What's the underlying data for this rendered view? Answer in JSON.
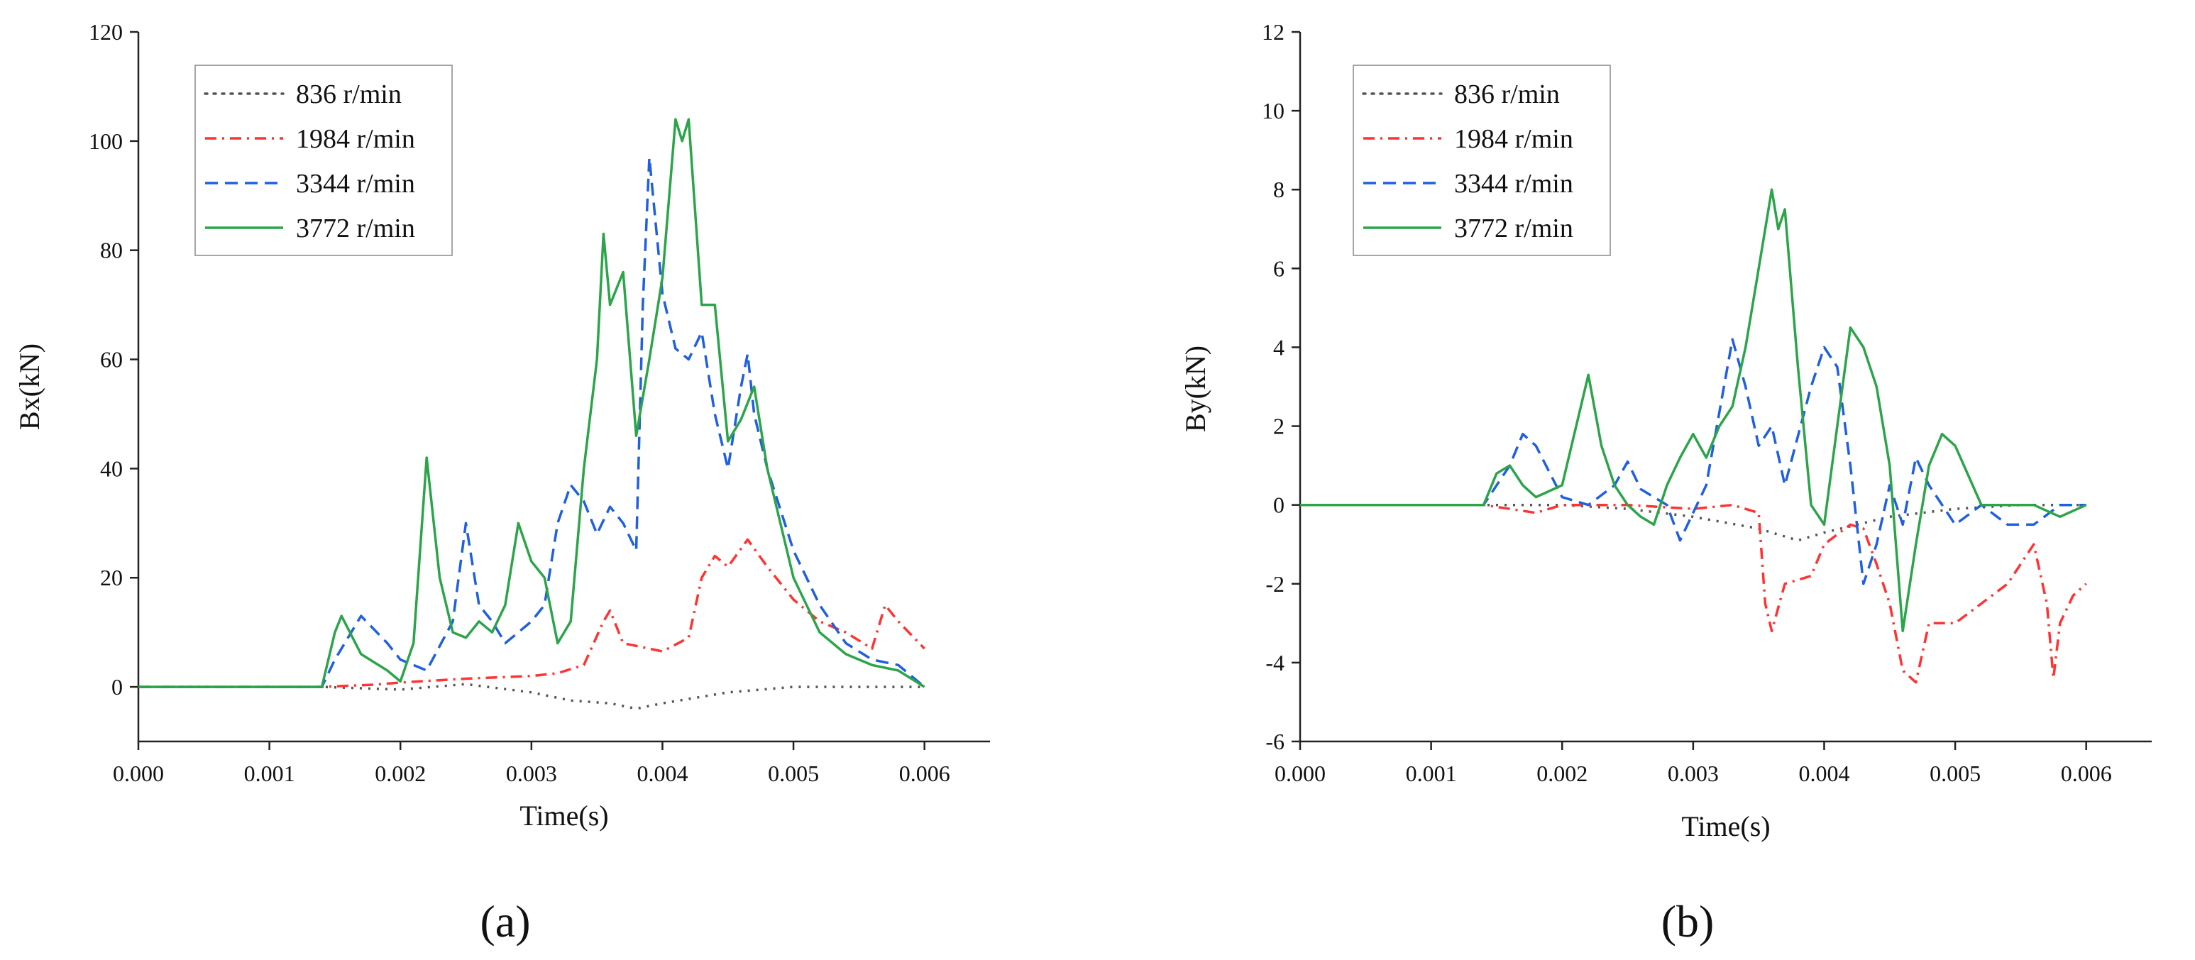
{
  "chart_data": [
    {
      "type": "line",
      "panel_label": "(a)",
      "title": "",
      "xlabel": "Time(s)",
      "ylabel": "Bx(kN)",
      "xlim": [
        0.0,
        0.0065
      ],
      "ylim": [
        -10,
        120
      ],
      "xticks": [
        "0.000",
        "0.001",
        "0.002",
        "0.003",
        "0.004",
        "0.005",
        "0.006"
      ],
      "xtick_values": [
        0.0,
        0.001,
        0.002,
        0.003,
        0.004,
        0.005,
        0.006
      ],
      "yticks": [
        "0",
        "20",
        "40",
        "60",
        "80",
        "100",
        "120"
      ],
      "ytick_values": [
        0,
        20,
        40,
        60,
        80,
        100,
        120
      ],
      "legend_position": "top-left",
      "series": [
        {
          "name": "836 r/min",
          "color": "#555555",
          "style": "dotted",
          "points": [
            [
              0,
              0
            ],
            [
              0.0014,
              0
            ],
            [
              0.002,
              -0.5
            ],
            [
              0.0025,
              0.5
            ],
            [
              0.003,
              -1
            ],
            [
              0.0033,
              -2.5
            ],
            [
              0.0036,
              -3
            ],
            [
              0.0038,
              -4
            ],
            [
              0.004,
              -3
            ],
            [
              0.0045,
              -1
            ],
            [
              0.005,
              0
            ],
            [
              0.0055,
              0
            ],
            [
              0.006,
              0
            ]
          ]
        },
        {
          "name": "1984 r/min",
          "color": "#ff3333",
          "style": "dashdot",
          "points": [
            [
              0,
              0
            ],
            [
              0.0014,
              0
            ],
            [
              0.0016,
              0.2
            ],
            [
              0.0018,
              0.4
            ],
            [
              0.002,
              0.8
            ],
            [
              0.0025,
              1.5
            ],
            [
              0.003,
              2
            ],
            [
              0.0032,
              2.5
            ],
            [
              0.0034,
              4
            ],
            [
              0.00355,
              12
            ],
            [
              0.0036,
              14
            ],
            [
              0.0037,
              8
            ],
            [
              0.0039,
              7
            ],
            [
              0.004,
              6.5
            ],
            [
              0.0042,
              9
            ],
            [
              0.0043,
              20
            ],
            [
              0.0044,
              24
            ],
            [
              0.0045,
              22
            ],
            [
              0.00465,
              27
            ],
            [
              0.0048,
              22
            ],
            [
              0.005,
              16
            ],
            [
              0.0052,
              12
            ],
            [
              0.0054,
              10
            ],
            [
              0.0056,
              7
            ],
            [
              0.0057,
              15
            ],
            [
              0.0058,
              12
            ],
            [
              0.006,
              7
            ]
          ]
        },
        {
          "name": "3344 r/min",
          "color": "#1f5fe0",
          "style": "dashed",
          "points": [
            [
              0,
              0
            ],
            [
              0.0014,
              0
            ],
            [
              0.0015,
              5
            ],
            [
              0.0017,
              13
            ],
            [
              0.0019,
              8
            ],
            [
              0.002,
              5
            ],
            [
              0.0022,
              3
            ],
            [
              0.0024,
              12
            ],
            [
              0.0025,
              30
            ],
            [
              0.0026,
              15
            ],
            [
              0.0027,
              12
            ],
            [
              0.0028,
              8
            ],
            [
              0.0029,
              10
            ],
            [
              0.003,
              12
            ],
            [
              0.0031,
              15
            ],
            [
              0.0032,
              30
            ],
            [
              0.0033,
              37
            ],
            [
              0.0034,
              34
            ],
            [
              0.0035,
              28
            ],
            [
              0.0036,
              33
            ],
            [
              0.0037,
              30
            ],
            [
              0.0038,
              25
            ],
            [
              0.00385,
              70
            ],
            [
              0.0039,
              97
            ],
            [
              0.004,
              72
            ],
            [
              0.0041,
              62
            ],
            [
              0.0042,
              60
            ],
            [
              0.0043,
              65
            ],
            [
              0.0044,
              50
            ],
            [
              0.0045,
              40
            ],
            [
              0.0046,
              55
            ],
            [
              0.00465,
              61
            ],
            [
              0.0047,
              50
            ],
            [
              0.0048,
              40
            ],
            [
              0.005,
              25
            ],
            [
              0.0052,
              15
            ],
            [
              0.0054,
              8
            ],
            [
              0.0056,
              5
            ],
            [
              0.0058,
              4
            ],
            [
              0.006,
              0
            ]
          ]
        },
        {
          "name": "3772 r/min",
          "color": "#2ca44a",
          "style": "solid",
          "points": [
            [
              0,
              0
            ],
            [
              0.0014,
              0
            ],
            [
              0.0015,
              10
            ],
            [
              0.00155,
              13
            ],
            [
              0.0017,
              6
            ],
            [
              0.0019,
              3
            ],
            [
              0.002,
              1
            ],
            [
              0.0021,
              8
            ],
            [
              0.0022,
              42
            ],
            [
              0.0023,
              20
            ],
            [
              0.0024,
              10
            ],
            [
              0.0025,
              9
            ],
            [
              0.0026,
              12
            ],
            [
              0.0027,
              10
            ],
            [
              0.0028,
              15
            ],
            [
              0.0029,
              30
            ],
            [
              0.003,
              23
            ],
            [
              0.0031,
              20
            ],
            [
              0.0032,
              8
            ],
            [
              0.0033,
              12
            ],
            [
              0.0034,
              40
            ],
            [
              0.0035,
              60
            ],
            [
              0.00355,
              83
            ],
            [
              0.0036,
              70
            ],
            [
              0.0037,
              76
            ],
            [
              0.0038,
              46
            ],
            [
              0.0039,
              60
            ],
            [
              0.004,
              75
            ],
            [
              0.0041,
              104
            ],
            [
              0.00415,
              100
            ],
            [
              0.0042,
              104
            ],
            [
              0.0043,
              70
            ],
            [
              0.0044,
              70
            ],
            [
              0.0045,
              45
            ],
            [
              0.0046,
              49
            ],
            [
              0.0047,
              55
            ],
            [
              0.0048,
              40
            ],
            [
              0.005,
              20
            ],
            [
              0.0052,
              10
            ],
            [
              0.0054,
              6
            ],
            [
              0.0056,
              4
            ],
            [
              0.0058,
              3
            ],
            [
              0.006,
              0
            ]
          ]
        }
      ]
    },
    {
      "type": "line",
      "panel_label": "(b)",
      "title": "",
      "xlabel": "Time(s)",
      "ylabel": "By(kN)",
      "xlim": [
        0.0,
        0.0065
      ],
      "ylim": [
        -6,
        12
      ],
      "xticks": [
        "0.000",
        "0.001",
        "0.002",
        "0.003",
        "0.004",
        "0.005",
        "0.006"
      ],
      "xtick_values": [
        0.0,
        0.001,
        0.002,
        0.003,
        0.004,
        0.005,
        0.006
      ],
      "yticks": [
        "-6",
        "-4",
        "-2",
        "0",
        "2",
        "4",
        "6",
        "8",
        "10",
        "12"
      ],
      "ytick_values": [
        -6,
        -4,
        -2,
        0,
        2,
        4,
        6,
        8,
        10,
        12
      ],
      "legend_position": "top-left",
      "series": [
        {
          "name": "836 r/min",
          "color": "#555555",
          "style": "dotted",
          "points": [
            [
              0,
              0
            ],
            [
              0.0014,
              0
            ],
            [
              0.002,
              0
            ],
            [
              0.0025,
              -0.1
            ],
            [
              0.003,
              -0.3
            ],
            [
              0.0035,
              -0.6
            ],
            [
              0.0038,
              -0.9
            ],
            [
              0.004,
              -0.7
            ],
            [
              0.0045,
              -0.3
            ],
            [
              0.005,
              -0.1
            ],
            [
              0.0055,
              0
            ],
            [
              0.006,
              0
            ]
          ]
        },
        {
          "name": "1984 r/min",
          "color": "#ff3333",
          "style": "dashdot",
          "points": [
            [
              0,
              0
            ],
            [
              0.0014,
              0
            ],
            [
              0.0016,
              -0.1
            ],
            [
              0.0018,
              -0.2
            ],
            [
              0.002,
              0
            ],
            [
              0.0025,
              0
            ],
            [
              0.003,
              -0.1
            ],
            [
              0.0033,
              0
            ],
            [
              0.0035,
              -0.2
            ],
            [
              0.00355,
              -2.5
            ],
            [
              0.0036,
              -3.2
            ],
            [
              0.0037,
              -2
            ],
            [
              0.0039,
              -1.8
            ],
            [
              0.004,
              -1
            ],
            [
              0.0042,
              -0.5
            ],
            [
              0.0043,
              -0.6
            ],
            [
              0.0044,
              -1.5
            ],
            [
              0.0045,
              -2.5
            ],
            [
              0.0046,
              -4.2
            ],
            [
              0.0047,
              -4.5
            ],
            [
              0.0048,
              -3
            ],
            [
              0.005,
              -3
            ],
            [
              0.0052,
              -2.5
            ],
            [
              0.0054,
              -2
            ],
            [
              0.0056,
              -1
            ],
            [
              0.0057,
              -2.5
            ],
            [
              0.00575,
              -4.4
            ],
            [
              0.0058,
              -3
            ],
            [
              0.0059,
              -2.3
            ],
            [
              0.006,
              -2
            ]
          ]
        },
        {
          "name": "3344 r/min",
          "color": "#1f5fe0",
          "style": "dashed",
          "points": [
            [
              0,
              0
            ],
            [
              0.0014,
              0
            ],
            [
              0.0016,
              1
            ],
            [
              0.0017,
              1.8
            ],
            [
              0.0018,
              1.5
            ],
            [
              0.002,
              0.2
            ],
            [
              0.0022,
              0
            ],
            [
              0.0024,
              0.5
            ],
            [
              0.0025,
              1.1
            ],
            [
              0.0026,
              0.4
            ],
            [
              0.0027,
              0.2
            ],
            [
              0.0028,
              0
            ],
            [
              0.0029,
              -0.9
            ],
            [
              0.003,
              -0.2
            ],
            [
              0.0031,
              0.5
            ],
            [
              0.0033,
              4.2
            ],
            [
              0.0034,
              3
            ],
            [
              0.0035,
              1.5
            ],
            [
              0.0036,
              2
            ],
            [
              0.0037,
              0.5
            ],
            [
              0.0039,
              3
            ],
            [
              0.004,
              4
            ],
            [
              0.0041,
              3.5
            ],
            [
              0.0042,
              1
            ],
            [
              0.0043,
              -2
            ],
            [
              0.0044,
              -1
            ],
            [
              0.0045,
              0.5
            ],
            [
              0.0046,
              -0.5
            ],
            [
              0.0047,
              1.2
            ],
            [
              0.0048,
              0.5
            ],
            [
              0.005,
              -0.5
            ],
            [
              0.0052,
              0
            ],
            [
              0.0054,
              -0.5
            ],
            [
              0.0056,
              -0.5
            ],
            [
              0.0058,
              0
            ],
            [
              0.006,
              0
            ]
          ]
        },
        {
          "name": "3772 r/min",
          "color": "#2ca44a",
          "style": "solid",
          "points": [
            [
              0,
              0
            ],
            [
              0.0014,
              0
            ],
            [
              0.0015,
              0.8
            ],
            [
              0.0016,
              1
            ],
            [
              0.0017,
              0.5
            ],
            [
              0.0018,
              0.2
            ],
            [
              0.002,
              0.5
            ],
            [
              0.0022,
              3.3
            ],
            [
              0.0023,
              1.5
            ],
            [
              0.0024,
              0.5
            ],
            [
              0.0025,
              0
            ],
            [
              0.0026,
              -0.3
            ],
            [
              0.0027,
              -0.5
            ],
            [
              0.0028,
              0.5
            ],
            [
              0.0029,
              1.2
            ],
            [
              0.003,
              1.8
            ],
            [
              0.0031,
              1.2
            ],
            [
              0.0032,
              2
            ],
            [
              0.0033,
              2.5
            ],
            [
              0.0034,
              4
            ],
            [
              0.0035,
              6
            ],
            [
              0.0036,
              8
            ],
            [
              0.00365,
              7
            ],
            [
              0.0037,
              7.5
            ],
            [
              0.0038,
              3.5
            ],
            [
              0.0039,
              0
            ],
            [
              0.004,
              -0.5
            ],
            [
              0.0041,
              2
            ],
            [
              0.0042,
              4.5
            ],
            [
              0.0043,
              4
            ],
            [
              0.0044,
              3
            ],
            [
              0.0045,
              1
            ],
            [
              0.0046,
              -3.2
            ],
            [
              0.0047,
              -1
            ],
            [
              0.0048,
              1
            ],
            [
              0.0049,
              1.8
            ],
            [
              0.005,
              1.5
            ],
            [
              0.0052,
              0
            ],
            [
              0.0054,
              0
            ],
            [
              0.0056,
              0
            ],
            [
              0.0058,
              -0.3
            ],
            [
              0.006,
              0
            ]
          ]
        }
      ]
    }
  ]
}
